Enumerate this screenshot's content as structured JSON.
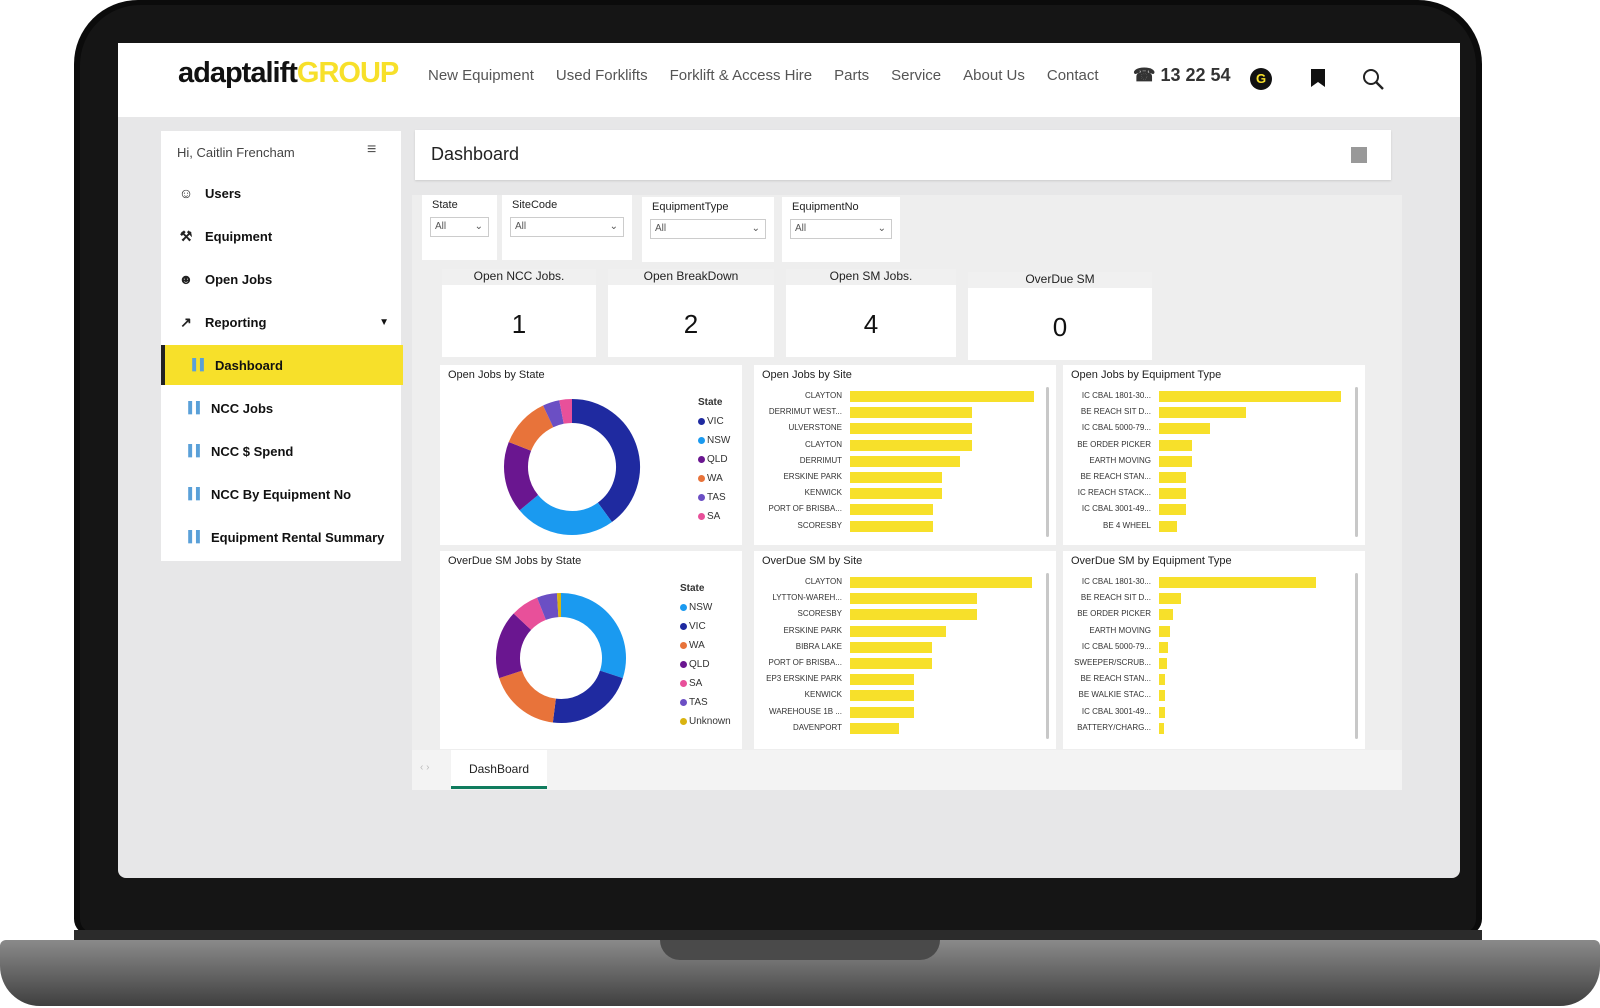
{
  "brand": {
    "part1": "adaptalift",
    "part2": "GROUP"
  },
  "nav": {
    "links": [
      "New Equipment",
      "Used Forklifts",
      "Forklift & Access Hire",
      "Parts",
      "Service",
      "About Us",
      "Contact"
    ],
    "phone": "13 22 54",
    "badge": "G"
  },
  "sidebar": {
    "greeting": "Hi, Caitlin Frencham",
    "items": [
      {
        "label": "Users",
        "icon": "users-icon"
      },
      {
        "label": "Equipment",
        "icon": "equipment-icon"
      },
      {
        "label": "Open Jobs",
        "icon": "open-jobs-icon"
      },
      {
        "label": "Reporting",
        "icon": "reporting-icon"
      }
    ],
    "sub_items": [
      {
        "label": "Dashboard",
        "active": true
      },
      {
        "label": "NCC Jobs"
      },
      {
        "label": "NCC $ Spend"
      },
      {
        "label": "NCC By Equipment No"
      },
      {
        "label": "Equipment Rental Summary"
      }
    ]
  },
  "header": {
    "title": "Dashboard"
  },
  "slicers": [
    {
      "label": "State",
      "value": "All"
    },
    {
      "label": "SiteCode",
      "value": "All"
    },
    {
      "label": "EquipmentType",
      "value": "All"
    },
    {
      "label": "EquipmentNo",
      "value": "All"
    }
  ],
  "cards": [
    {
      "label": "Open NCC Jobs.",
      "value": "1"
    },
    {
      "label": "Open BreakDown",
      "value": "2"
    },
    {
      "label": "Open SM Jobs.",
      "value": "4"
    },
    {
      "label": "OverDue SM",
      "value": "0"
    }
  ],
  "tabs": {
    "active": "DashBoard"
  },
  "colors": {
    "accent": "#f7e02a",
    "tab_underline": "#107c5e"
  },
  "chart_data": [
    {
      "type": "pie",
      "title": "Open Jobs by State",
      "legend_title": "State",
      "legend_position": "right",
      "series": [
        {
          "name": "VIC",
          "value": 40,
          "color": "#1f2aa0"
        },
        {
          "name": "NSW",
          "value": 24,
          "color": "#1a9af0"
        },
        {
          "name": "QLD",
          "value": 17,
          "color": "#6a1690"
        },
        {
          "name": "WA",
          "value": 12,
          "color": "#e8733a"
        },
        {
          "name": "TAS",
          "value": 4,
          "color": "#6b4fc4"
        },
        {
          "name": "SA",
          "value": 3,
          "color": "#e8509a"
        }
      ]
    },
    {
      "type": "bar",
      "title": "Open Jobs by Site",
      "categories": [
        "CLAYTON",
        "DERRIMUT WEST...",
        "ULVERSTONE",
        "CLAYTON",
        "DERRIMUT",
        "ERSKINE PARK",
        "KENWICK",
        "PORT OF BRISBA...",
        "SCORESBY"
      ],
      "values": [
        8,
        5.3,
        5.3,
        5.3,
        4.8,
        4,
        4,
        3.6,
        3.6
      ]
    },
    {
      "type": "bar",
      "title": "Open Jobs by Equipment Type",
      "categories": [
        "IC CBAL 1801-30...",
        "BE REACH SIT D...",
        "IC CBAL 5000-79...",
        "BE ORDER PICKER",
        "EARTH MOVING",
        "BE REACH STAN...",
        "IC REACH STACK...",
        "IC CBAL 3001-49...",
        "BE 4 WHEEL"
      ],
      "values": [
        10,
        4.8,
        2.8,
        1.8,
        1.8,
        1.5,
        1.5,
        1.5,
        1
      ]
    },
    {
      "type": "pie",
      "title": "OverDue SM Jobs by State",
      "legend_title": "State",
      "legend_position": "right",
      "series": [
        {
          "name": "NSW",
          "value": 30,
          "color": "#1a9af0"
        },
        {
          "name": "VIC",
          "value": 22,
          "color": "#1f2aa0"
        },
        {
          "name": "WA",
          "value": 18,
          "color": "#e8733a"
        },
        {
          "name": "QLD",
          "value": 17,
          "color": "#6a1690"
        },
        {
          "name": "SA",
          "value": 7,
          "color": "#e8509a"
        },
        {
          "name": "TAS",
          "value": 5,
          "color": "#6b4fc4"
        },
        {
          "name": "Unknown",
          "value": 1,
          "color": "#d9b310"
        }
      ]
    },
    {
      "type": "bar",
      "title": "OverDue SM by Site",
      "categories": [
        "CLAYTON",
        "LYTTON-WAREH...",
        "SCORESBY",
        "ERSKINE PARK",
        "BIBRA LAKE",
        "PORT OF BRISBA...",
        "EP3 ERSKINE PARK",
        "KENWICK",
        "WAREHOUSE 1B ...",
        "DAVENPORT"
      ],
      "values": [
        10,
        7,
        7,
        5.3,
        4.5,
        4.5,
        3.5,
        3.5,
        3.5,
        2.7
      ]
    },
    {
      "type": "bar",
      "title": "OverDue SM by Equipment Type",
      "categories": [
        "IC CBAL 1801-30...",
        "BE REACH SIT D...",
        "BE ORDER PICKER",
        "EARTH MOVING",
        "IC CBAL 5000-79...",
        "SWEEPER/SCRUB...",
        "BE REACH STAN...",
        "BE WALKIE STAC...",
        "IC CBAL 3001-49...",
        "BATTERY/CHARG..."
      ],
      "values": [
        10,
        1.4,
        0.9,
        0.7,
        0.6,
        0.5,
        0.4,
        0.4,
        0.4,
        0.3
      ]
    }
  ]
}
